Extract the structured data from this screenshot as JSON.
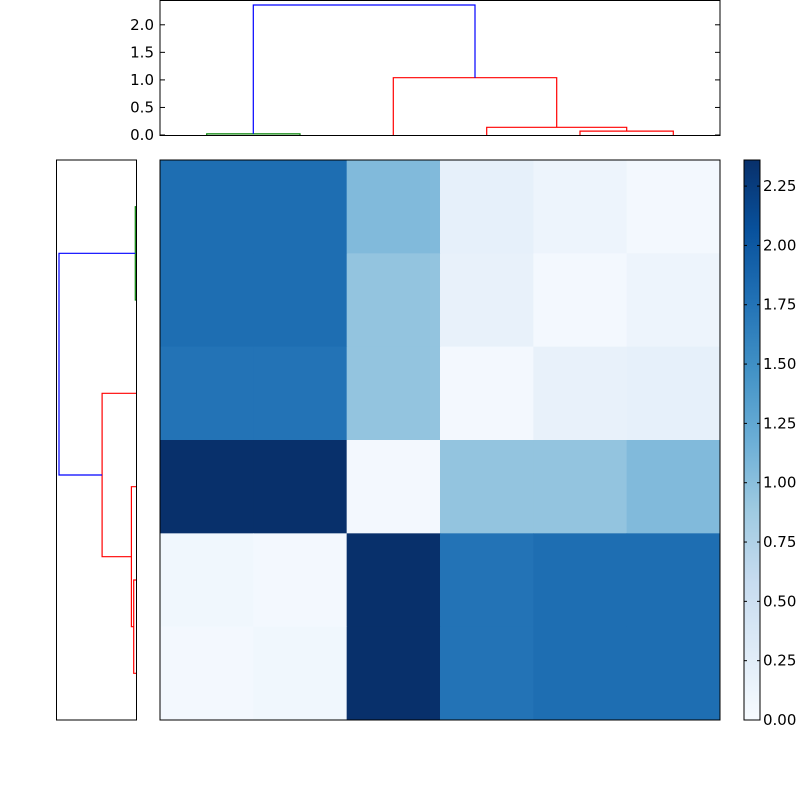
{
  "chart_data": [
    {
      "type": "dendrogram",
      "orientation": "top",
      "ylim": [
        0,
        2.45
      ],
      "yticks": [
        0.0,
        0.5,
        1.0,
        1.5,
        2.0
      ],
      "ytick_labels": [
        "0.0",
        "0.5",
        "1.0",
        "1.5",
        "2.0"
      ],
      "leaf_count": 6,
      "links": [
        {
          "x": [
            0.5,
            0.5,
            1.5,
            1.5
          ],
          "y": [
            0.0,
            0.02,
            0.02,
            0.0
          ],
          "color": "#008000"
        },
        {
          "x": [
            4.5,
            4.5,
            5.5,
            5.5
          ],
          "y": [
            0.0,
            0.07,
            0.07,
            0.0
          ],
          "color": "#ff0000"
        },
        {
          "x": [
            3.5,
            3.5,
            5.0,
            5.0
          ],
          "y": [
            0.0,
            0.14,
            0.14,
            0.07
          ],
          "color": "#ff0000"
        },
        {
          "x": [
            2.5,
            2.5,
            4.25,
            4.25
          ],
          "y": [
            0.0,
            1.04,
            1.04,
            0.14
          ],
          "color": "#ff0000"
        },
        {
          "x": [
            1.0,
            1.0,
            3.375,
            3.375
          ],
          "y": [
            0.02,
            2.36,
            2.36,
            1.04
          ],
          "color": "#0000ff"
        }
      ]
    },
    {
      "type": "dendrogram",
      "orientation": "left",
      "leaf_count": 6,
      "links": [
        {
          "x": [
            0.5,
            0.5,
            1.5,
            1.5
          ],
          "y": [
            0.0,
            0.02,
            0.02,
            0.0
          ],
          "color": "#008000"
        },
        {
          "x": [
            4.5,
            4.5,
            5.5,
            5.5
          ],
          "y": [
            0.0,
            0.07,
            0.07,
            0.0
          ],
          "color": "#ff0000"
        },
        {
          "x": [
            3.5,
            3.5,
            5.0,
            5.0
          ],
          "y": [
            0.0,
            0.14,
            0.14,
            0.07
          ],
          "color": "#ff0000"
        },
        {
          "x": [
            2.5,
            2.5,
            4.25,
            4.25
          ],
          "y": [
            0.0,
            1.04,
            1.04,
            0.14
          ],
          "color": "#ff0000"
        },
        {
          "x": [
            1.0,
            1.0,
            3.375,
            3.375
          ],
          "y": [
            0.02,
            2.36,
            2.36,
            1.04
          ],
          "color": "#0000ff"
        }
      ]
    },
    {
      "type": "heatmap",
      "colormap": "Blues",
      "vmin": 0.0,
      "vmax": 2.36,
      "values": [
        [
          1.8,
          1.8,
          1.05,
          0.2,
          0.12,
          0.05
        ],
        [
          1.8,
          1.8,
          0.95,
          0.18,
          0.05,
          0.12
        ],
        [
          1.75,
          1.75,
          0.95,
          0.05,
          0.18,
          0.2
        ],
        [
          2.36,
          2.36,
          0.05,
          0.95,
          0.95,
          1.05
        ],
        [
          0.08,
          0.05,
          2.36,
          1.75,
          1.8,
          1.8
        ],
        [
          0.05,
          0.08,
          2.36,
          1.75,
          1.8,
          1.8
        ]
      ]
    },
    {
      "type": "colorbar",
      "colormap": "Blues",
      "vmin": 0.0,
      "vmax": 2.36,
      "ticks": [
        0.0,
        0.25,
        0.5,
        0.75,
        1.0,
        1.25,
        1.5,
        1.75,
        2.0,
        2.25
      ],
      "tick_labels": [
        "0.00",
        "0.25",
        "0.50",
        "0.75",
        "1.00",
        "1.25",
        "1.50",
        "1.75",
        "2.00",
        "2.25"
      ]
    }
  ]
}
